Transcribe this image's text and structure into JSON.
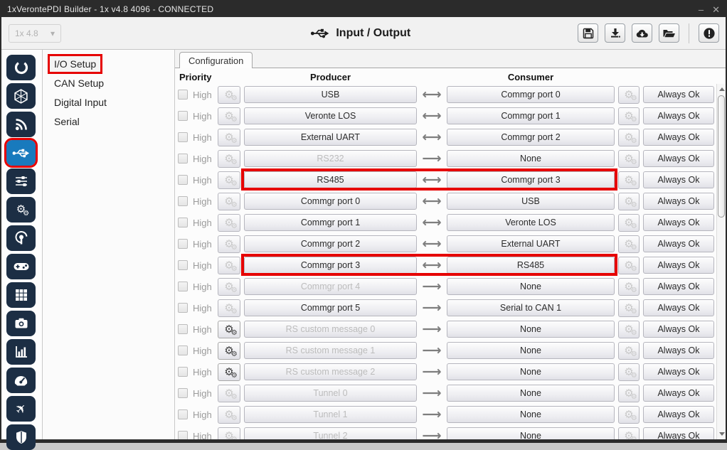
{
  "window": {
    "title": "1xVerontePDI Builder - 1x v4.8 4096 - CONNECTED",
    "minimize_glyph": "–",
    "close_glyph": "✕"
  },
  "toolbar": {
    "version_dropdown_value": "1x 4.8",
    "page_title": "Input / Output",
    "buttons": [
      "save",
      "import-download",
      "cloud-download",
      "open-folder",
      "info"
    ]
  },
  "sidebar": {
    "selected_index": 3,
    "items": [
      {
        "name": "veronte-logo"
      },
      {
        "name": "hexagon-mesh"
      },
      {
        "name": "telemetry-signal"
      },
      {
        "name": "input-output-usb",
        "selected": true,
        "accent_color": "#187abd",
        "highlight_color": "#e60000"
      },
      {
        "name": "sliders"
      },
      {
        "name": "gears-settings"
      },
      {
        "name": "broadcast"
      },
      {
        "name": "gamepad-stick"
      },
      {
        "name": "blocks-grid"
      },
      {
        "name": "camera"
      },
      {
        "name": "bar-chart"
      },
      {
        "name": "gauge-dashboard"
      },
      {
        "name": "airplane"
      },
      {
        "name": "shield-safety"
      }
    ]
  },
  "nav": {
    "items": [
      {
        "label": "I/O Setup",
        "selected": true,
        "highlighted": true
      },
      {
        "label": "CAN Setup"
      },
      {
        "label": "Digital Input"
      },
      {
        "label": "Serial"
      }
    ]
  },
  "main": {
    "tab_label": "Configuration",
    "columns": {
      "priority": "Priority",
      "producer": "Producer",
      "consumer": "Consumer"
    },
    "priority_high_label": "High",
    "status_label": "Always Ok",
    "highlight_color": "#e60000",
    "rows": [
      {
        "producer": "USB",
        "direction": "bi",
        "consumer": "Commgr port 0",
        "producer_enabled": true,
        "producer_gear_active": false,
        "highlighted": false
      },
      {
        "producer": "Veronte LOS",
        "direction": "bi",
        "consumer": "Commgr port 1",
        "producer_enabled": true,
        "producer_gear_active": false,
        "highlighted": false
      },
      {
        "producer": "External UART",
        "direction": "bi",
        "consumer": "Commgr port 2",
        "producer_enabled": true,
        "producer_gear_active": false,
        "highlighted": false
      },
      {
        "producer": "RS232",
        "direction": "uni",
        "consumer": "None",
        "producer_enabled": false,
        "producer_gear_active": false,
        "highlighted": false
      },
      {
        "producer": "RS485",
        "direction": "bi",
        "consumer": "Commgr port 3",
        "producer_enabled": true,
        "producer_gear_active": false,
        "highlighted": true
      },
      {
        "producer": "Commgr port 0",
        "direction": "bi",
        "consumer": "USB",
        "producer_enabled": true,
        "producer_gear_active": false,
        "highlighted": false
      },
      {
        "producer": "Commgr port 1",
        "direction": "bi",
        "consumer": "Veronte LOS",
        "producer_enabled": true,
        "producer_gear_active": false,
        "highlighted": false
      },
      {
        "producer": "Commgr port 2",
        "direction": "bi",
        "consumer": "External UART",
        "producer_enabled": true,
        "producer_gear_active": false,
        "highlighted": false
      },
      {
        "producer": "Commgr port 3",
        "direction": "bi",
        "consumer": "RS485",
        "producer_enabled": true,
        "producer_gear_active": false,
        "highlighted": true
      },
      {
        "producer": "Commgr port 4",
        "direction": "uni",
        "consumer": "None",
        "producer_enabled": false,
        "producer_gear_active": false,
        "highlighted": false
      },
      {
        "producer": "Commgr port 5",
        "direction": "uni",
        "consumer": "Serial to CAN 1",
        "producer_enabled": true,
        "producer_gear_active": false,
        "highlighted": false
      },
      {
        "producer": "RS custom message 0",
        "direction": "uni",
        "consumer": "None",
        "producer_enabled": false,
        "producer_gear_active": true,
        "highlighted": false
      },
      {
        "producer": "RS custom message 1",
        "direction": "uni",
        "consumer": "None",
        "producer_enabled": false,
        "producer_gear_active": true,
        "highlighted": false
      },
      {
        "producer": "RS custom message 2",
        "direction": "uni",
        "consumer": "None",
        "producer_enabled": false,
        "producer_gear_active": true,
        "highlighted": false
      },
      {
        "producer": "Tunnel 0",
        "direction": "uni",
        "consumer": "None",
        "producer_enabled": false,
        "producer_gear_active": false,
        "highlighted": false
      },
      {
        "producer": "Tunnel 1",
        "direction": "uni",
        "consumer": "None",
        "producer_enabled": false,
        "producer_gear_active": false,
        "highlighted": false
      },
      {
        "producer": "Tunnel 2",
        "direction": "uni",
        "consumer": "None",
        "producer_enabled": false,
        "producer_gear_active": false,
        "highlighted": false
      }
    ]
  },
  "icons": {
    "gear": "⚙",
    "arrow_bidirectional": "⟷",
    "arrow_right": "⟶",
    "dropdown_caret": "▾"
  }
}
